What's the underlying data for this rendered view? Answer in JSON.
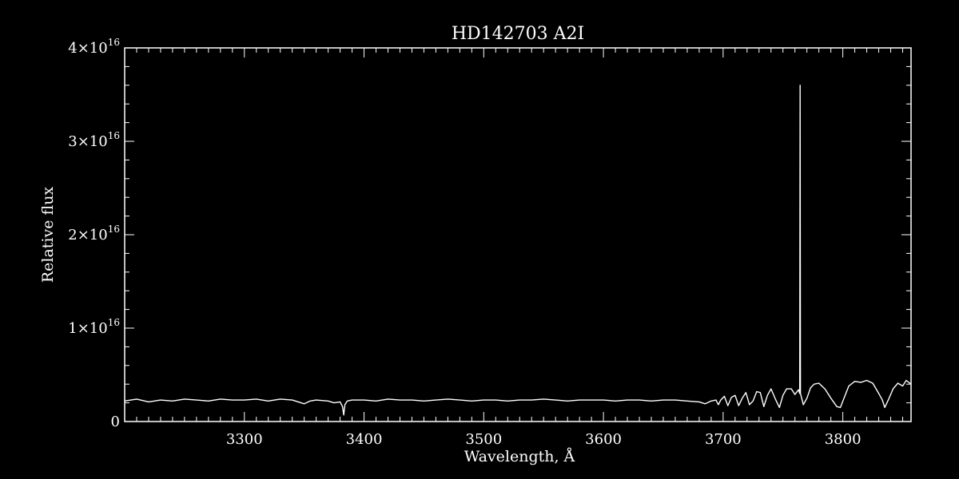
{
  "chart_data": {
    "type": "line",
    "title": "HD142703  A2I",
    "xlabel": "Wavelength, Å",
    "ylabel": "Relative flux",
    "xlim": [
      3200,
      3857
    ],
    "ylim": [
      0,
      4e+16
    ],
    "x_ticks": [
      3300,
      3400,
      3500,
      3600,
      3700,
      3800
    ],
    "y_ticks": [
      {
        "value": 0,
        "mantissa": "0",
        "exponent": ""
      },
      {
        "value": 1e+16,
        "mantissa": "1×10",
        "exponent": "16"
      },
      {
        "value": 2e+16,
        "mantissa": "2×10",
        "exponent": "16"
      },
      {
        "value": 3e+16,
        "mantissa": "3×10",
        "exponent": "16"
      },
      {
        "value": 4e+16,
        "mantissa": "4×10",
        "exponent": "16"
      }
    ],
    "grid": false,
    "colors": {
      "background": "#000000",
      "foreground": "#ffffff",
      "line": "#ffffff"
    },
    "series": [
      {
        "x": [
          3200,
          3210,
          3220,
          3230,
          3240,
          3250,
          3260,
          3270,
          3280,
          3290,
          3300,
          3310,
          3320,
          3330,
          3340,
          3345,
          3350,
          3355,
          3360,
          3370,
          3375,
          3380,
          3382,
          3383,
          3384,
          3386,
          3390,
          3400,
          3410,
          3420,
          3430,
          3440,
          3450,
          3460,
          3470,
          3480,
          3490,
          3500,
          3510,
          3520,
          3530,
          3540,
          3550,
          3560,
          3570,
          3580,
          3590,
          3600,
          3610,
          3620,
          3630,
          3640,
          3650,
          3660,
          3670,
          3680,
          3685,
          3690,
          3694,
          3696,
          3698,
          3701,
          3704,
          3707,
          3710,
          3713,
          3716,
          3719,
          3722,
          3725,
          3728,
          3731,
          3734,
          3737,
          3740,
          3744,
          3747,
          3750,
          3753,
          3757,
          3760,
          3763,
          3764,
          3764.3,
          3764.6,
          3765,
          3767,
          3770,
          3773,
          3776,
          3780,
          3785,
          3790,
          3795,
          3798,
          3801,
          3805,
          3810,
          3815,
          3820,
          3825,
          3830,
          3833,
          3835,
          3838,
          3842,
          3846,
          3850,
          3853,
          3857
        ],
        "y": [
          2200000000000000.0,
          2400000000000000.0,
          2100000000000000.0,
          2300000000000000.0,
          2200000000000000.0,
          2400000000000000.0,
          2300000000000000.0,
          2200000000000000.0,
          2400000000000000.0,
          2300000000000000.0,
          2300000000000000.0,
          2400000000000000.0,
          2200000000000000.0,
          2400000000000000.0,
          2300000000000000.0,
          2100000000000000.0,
          1900000000000000.0,
          2200000000000000.0,
          2300000000000000.0,
          2200000000000000.0,
          2000000000000000.0,
          2100000000000000.0,
          1600000000000000.0,
          700000000000000.0,
          1800000000000000.0,
          2200000000000000.0,
          2300000000000000.0,
          2300000000000000.0,
          2200000000000000.0,
          2400000000000000.0,
          2300000000000000.0,
          2300000000000000.0,
          2200000000000000.0,
          2300000000000000.0,
          2400000000000000.0,
          2300000000000000.0,
          2200000000000000.0,
          2300000000000000.0,
          2300000000000000.0,
          2200000000000000.0,
          2300000000000000.0,
          2300000000000000.0,
          2400000000000000.0,
          2300000000000000.0,
          2200000000000000.0,
          2300000000000000.0,
          2300000000000000.0,
          2300000000000000.0,
          2200000000000000.0,
          2300000000000000.0,
          2300000000000000.0,
          2200000000000000.0,
          2300000000000000.0,
          2300000000000000.0,
          2200000000000000.0,
          2100000000000000.0,
          1900000000000000.0,
          2200000000000000.0,
          2300000000000000.0,
          1800000000000000.0,
          2300000000000000.0,
          2700000000000000.0,
          1700000000000000.0,
          2600000000000000.0,
          2800000000000000.0,
          1700000000000000.0,
          2500000000000000.0,
          3100000000000000.0,
          1800000000000000.0,
          2200000000000000.0,
          3200000000000000.0,
          3100000000000000.0,
          1600000000000000.0,
          2800000000000000.0,
          3500000000000000.0,
          2300000000000000.0,
          1500000000000000.0,
          2800000000000000.0,
          3500000000000000.0,
          3500000000000000.0,
          2900000000000000.0,
          3400000000000000.0,
          3000000000000000.0,
          3.6e+16,
          3000000000000000.0,
          2800000000000000.0,
          1800000000000000.0,
          2500000000000000.0,
          3600000000000000.0,
          4000000000000000.0,
          4100000000000000.0,
          3500000000000000.0,
          2500000000000000.0,
          1600000000000000.0,
          1500000000000000.0,
          2500000000000000.0,
          3800000000000000.0,
          4300000000000000.0,
          4200000000000000.0,
          4400000000000000.0,
          4100000000000000.0,
          3000000000000000.0,
          2300000000000000.0,
          1500000000000000.0,
          2300000000000000.0,
          3500000000000000.0,
          4100000000000000.0,
          3800000000000000.0,
          4400000000000000.0,
          4000000000000000.0
        ]
      }
    ]
  }
}
